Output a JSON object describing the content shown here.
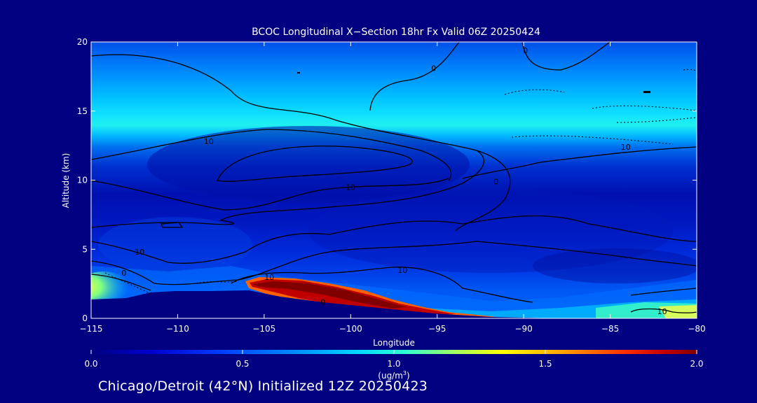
{
  "chart_data": {
    "type": "heatmap",
    "title": "BCOC Longitudinal X−Section 18hr  Fx Valid 06Z 20250424",
    "xlabel": "Longitude",
    "ylabel": "Altitude (km)",
    "xlim": [
      -115,
      -80
    ],
    "ylim": [
      0,
      20
    ],
    "x_ticks": [
      -115,
      -110,
      -105,
      -100,
      -95,
      -90,
      -85,
      -80
    ],
    "x_tick_labels": [
      "−115",
      "−110",
      "−105",
      "−100",
      "−95",
      "−90",
      "−85",
      "−80"
    ],
    "y_ticks": [
      0,
      5,
      10,
      15,
      20
    ],
    "y_tick_labels": [
      "0",
      "5",
      "10",
      "15",
      "20"
    ],
    "colorbar": {
      "min": 0.0,
      "max": 2.0,
      "tick_values": [
        0.0,
        0.5,
        1.0,
        1.5,
        2.0
      ],
      "tick_labels": [
        "0.0",
        "0.5",
        "1.0",
        "1.5",
        "2.0"
      ],
      "unit_prefix": "(ug/m",
      "unit_sup": "3",
      "unit_suffix": ")",
      "colors": [
        "#000080",
        "#0000c8",
        "#0040ff",
        "#0090ff",
        "#00d8ff",
        "#30ffd0",
        "#a0ff60",
        "#ffff00",
        "#ffa000",
        "#ff3000",
        "#c00000",
        "#800000"
      ]
    },
    "contour_labels": [
      {
        "text": "0",
        "x": -113.1,
        "y": 3.3
      },
      {
        "text": "10",
        "x": -112.2,
        "y": 4.8
      },
      {
        "text": "10",
        "x": -108.2,
        "y": 12.8
      },
      {
        "text": "10",
        "x": -104.7,
        "y": 3.0
      },
      {
        "text": "0",
        "x": -101.6,
        "y": 1.2
      },
      {
        "text": "10",
        "x": -100.0,
        "y": 9.5
      },
      {
        "text": "0",
        "x": -95.2,
        "y": 18.1
      },
      {
        "text": "10",
        "x": -97.0,
        "y": 3.5
      },
      {
        "text": "0",
        "x": -91.6,
        "y": 9.9
      },
      {
        "text": "0",
        "x": -89.9,
        "y": 19.4
      },
      {
        "text": "10",
        "x": -84.1,
        "y": 12.4
      },
      {
        "text": "10",
        "x": -82.0,
        "y": 0.5
      }
    ]
  },
  "footer_text": "Chicago/Detroit (42°N) Initialized 12Z 20250423"
}
